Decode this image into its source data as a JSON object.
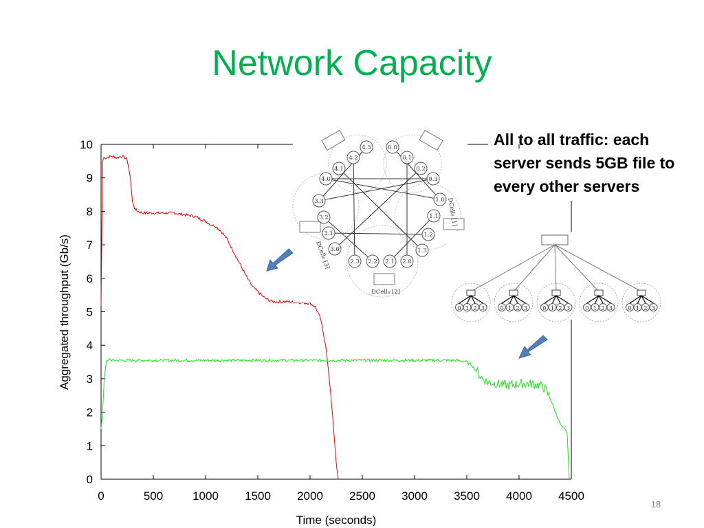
{
  "slide": {
    "title": "Network Capacity",
    "page_number": "18",
    "callout": "All to all traffic: each server sends 5GB file to every other servers"
  },
  "chart_data": {
    "type": "line",
    "xlabel": "Time (seconds)",
    "ylabel": "Aggregated throughput (Gb/s)",
    "xlim": [
      0,
      4500
    ],
    "ylim": [
      0,
      10
    ],
    "xticks": [
      0,
      500,
      1000,
      1500,
      2000,
      2500,
      3000,
      3500,
      4000,
      4500
    ],
    "yticks": [
      0,
      1,
      2,
      3,
      4,
      5,
      6,
      7,
      8,
      9,
      10
    ],
    "grid": false,
    "series": [
      {
        "color": "#e00000",
        "x": [
          0,
          15,
          25,
          50,
          100,
          150,
          200,
          250,
          280,
          300,
          320,
          350,
          400,
          500,
          600,
          700,
          800,
          900,
          1000,
          1050,
          1100,
          1150,
          1200,
          1250,
          1300,
          1350,
          1400,
          1450,
          1500,
          1550,
          1600,
          1650,
          1700,
          1800,
          1900,
          2000,
          2050,
          2100,
          2150,
          2200,
          2230,
          2250,
          2265,
          2270
        ],
        "y": [
          5.2,
          9.5,
          9.6,
          9.6,
          9.65,
          9.6,
          9.65,
          9.55,
          9.0,
          8.3,
          8.1,
          8.0,
          7.95,
          7.95,
          7.95,
          7.95,
          7.9,
          7.85,
          7.7,
          7.6,
          7.55,
          7.4,
          7.2,
          6.9,
          6.6,
          6.3,
          6.0,
          5.75,
          5.6,
          5.45,
          5.35,
          5.3,
          5.3,
          5.3,
          5.28,
          5.25,
          5.15,
          4.8,
          4.0,
          2.5,
          1.3,
          0.5,
          0.1,
          0
        ],
        "annotation": "DCell topology"
      },
      {
        "color": "#20e020",
        "x": [
          0,
          15,
          30,
          50,
          80,
          100,
          200,
          500,
          1000,
          1500,
          2000,
          2500,
          3000,
          3300,
          3400,
          3500,
          3550,
          3600,
          3650,
          3700,
          3800,
          3900,
          4000,
          4100,
          4200,
          4250,
          4300,
          4350,
          4400,
          4430,
          4460,
          4480
        ],
        "y": [
          1.5,
          2.0,
          3.0,
          3.5,
          3.6,
          3.55,
          3.55,
          3.55,
          3.55,
          3.55,
          3.55,
          3.55,
          3.55,
          3.55,
          3.55,
          3.5,
          3.4,
          3.2,
          3.0,
          2.9,
          2.85,
          2.8,
          2.85,
          2.85,
          2.8,
          2.7,
          2.4,
          2.0,
          1.6,
          1.5,
          1.4,
          0
        ],
        "annotation": "Tree topology"
      }
    ]
  },
  "diagrams": {
    "dcell": {
      "node_labels": [
        "4.3",
        "4.2",
        "4.1",
        "4.0",
        "0.0",
        "0.1",
        "0.2",
        "0.3",
        "3.3",
        "3.2",
        "3.1",
        "3.0",
        "1.0",
        "1.1",
        "1.2",
        "1.3",
        "2.3",
        "2.2",
        "2.1",
        "2.0"
      ],
      "cell_labels": [
        "DCell₀ [3]",
        "DCell₀ [1]",
        "DCell₀ [2]"
      ]
    },
    "tree": {
      "leaf_labels": [
        "0",
        "1",
        "2",
        "3"
      ]
    }
  },
  "colors": {
    "title": "#00b050",
    "arrow": "#4f81bd"
  }
}
